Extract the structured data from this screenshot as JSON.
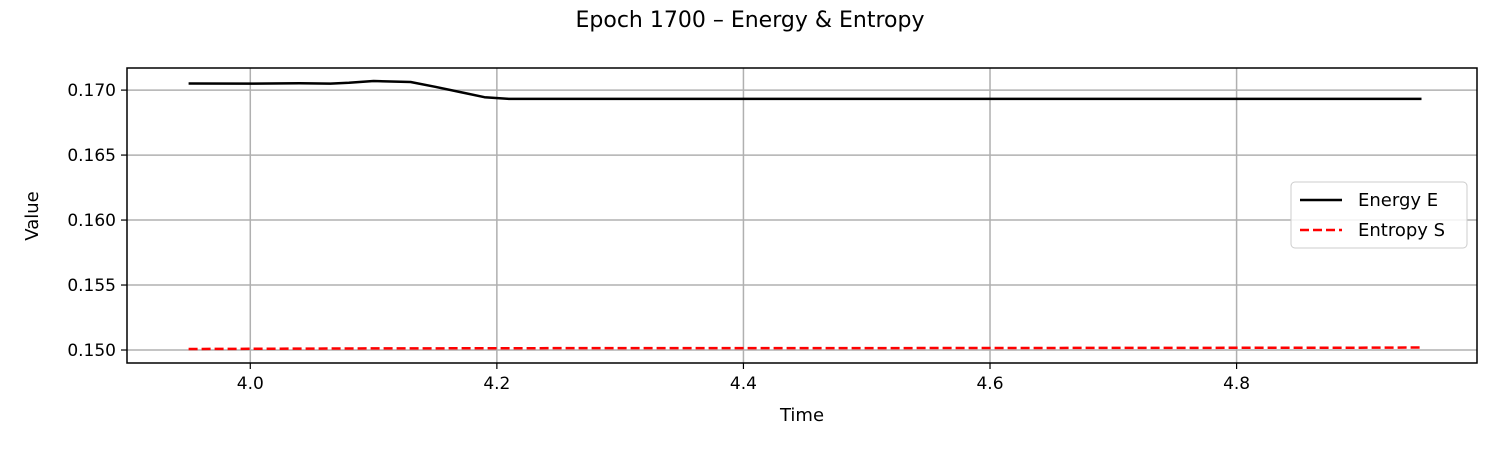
{
  "chart_data": {
    "type": "line",
    "title": "Epoch 1700 – Energy & Entropy",
    "xlabel": "Time",
    "ylabel": "Value",
    "xlim": [
      3.9,
      4.995
    ],
    "ylim": [
      0.149,
      0.1717
    ],
    "xticks": [
      4.0,
      4.2,
      4.4,
      4.6,
      4.8
    ],
    "xtick_labels": [
      "4.0",
      "4.2",
      "4.4",
      "4.6",
      "4.8"
    ],
    "yticks": [
      0.15,
      0.155,
      0.16,
      0.165,
      0.17
    ],
    "ytick_labels": [
      "0.150",
      "0.155",
      "0.160",
      "0.165",
      "0.170"
    ],
    "grid": true,
    "legend_position": "center-right",
    "series": [
      {
        "name": "Energy E",
        "color": "#000000",
        "style": "solid",
        "x": [
          3.95,
          4.0,
          4.04,
          4.065,
          4.08,
          4.1,
          4.13,
          4.15,
          4.17,
          4.19,
          4.21,
          4.3,
          4.5,
          4.7,
          4.9,
          4.95
        ],
        "y": [
          0.17051,
          0.1705,
          0.17052,
          0.1705,
          0.17056,
          0.1707,
          0.17062,
          0.17025,
          0.16985,
          0.16945,
          0.16932,
          0.16932,
          0.16932,
          0.16932,
          0.16932,
          0.16932
        ]
      },
      {
        "name": "Entropy S",
        "color": "#ff0000",
        "style": "dashed",
        "x": [
          3.95,
          4.1,
          4.3,
          4.5,
          4.7,
          4.9,
          4.95
        ],
        "y": [
          0.15008,
          0.15012,
          0.15015,
          0.15015,
          0.15016,
          0.15018,
          0.15019
        ]
      }
    ]
  }
}
